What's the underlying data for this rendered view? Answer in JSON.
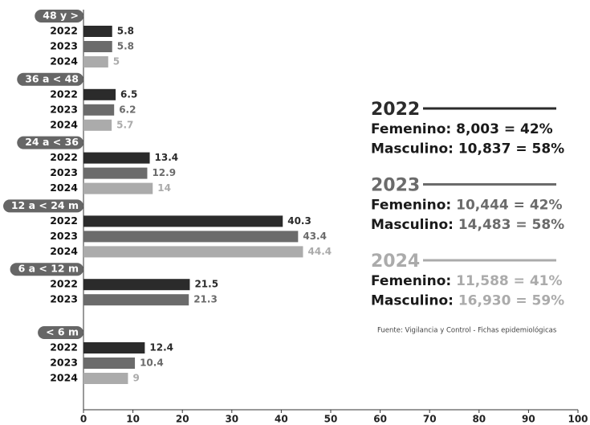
{
  "chart_data": {
    "type": "hbar",
    "categories": [
      "48 y >",
      "36 a < 48",
      "24 a < 36",
      "12 a < 24 m",
      "6 a < 12 m",
      "< 6 m"
    ],
    "series": [
      {
        "name": "2022",
        "color": "#2b2b2b",
        "values": [
          5.8,
          6.5,
          13.4,
          40.3,
          21.5,
          12.4
        ]
      },
      {
        "name": "2023",
        "color": "#6b6b6b",
        "values": [
          5.8,
          6.2,
          12.9,
          43.4,
          21.3,
          10.4
        ]
      },
      {
        "name": "2024",
        "color": "#ababab",
        "values": [
          5,
          5.7,
          14,
          44.4,
          null,
          9
        ]
      }
    ],
    "xlim": [
      0,
      100
    ],
    "xticks": [
      0,
      10,
      20,
      30,
      40,
      50,
      60,
      70,
      80,
      90,
      100
    ],
    "grid": false,
    "summary": [
      [
        {
          "label": "Femenino:",
          "value": "8,003 = 42%"
        },
        {
          "label": "Masculino:",
          "value": "10,837 = 58%"
        }
      ],
      [
        {
          "label": "Femenino:",
          "value": "10,444 = 42%"
        },
        {
          "label": "Masculino:",
          "value": "14,483 = 58%"
        }
      ],
      [
        {
          "label": "Femenino:",
          "value": "11,588 = 41%"
        },
        {
          "label": "Masculino:",
          "value": "16,930 = 59%"
        }
      ]
    ],
    "source": "Fuente: Vigilancia y Control - Fichas epidemiológicas"
  }
}
